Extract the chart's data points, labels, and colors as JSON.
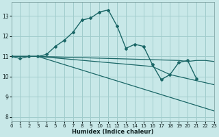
{
  "xlabel": "Humidex (Indice chaleur)",
  "background_color": "#c8e8e8",
  "grid_color": "#a0cccc",
  "line_color": "#1a6666",
  "xlim": [
    0,
    23
  ],
  "ylim": [
    7.8,
    13.7
  ],
  "yticks": [
    8,
    9,
    10,
    11,
    12,
    13
  ],
  "xticks": [
    0,
    1,
    2,
    3,
    4,
    5,
    6,
    7,
    8,
    9,
    10,
    11,
    12,
    13,
    14,
    15,
    16,
    17,
    18,
    19,
    20,
    21,
    22,
    23
  ],
  "line1_x": [
    0,
    1,
    2,
    3,
    4,
    5,
    6,
    7,
    8,
    9,
    10,
    11,
    12,
    13,
    14,
    15,
    16,
    17,
    18,
    19,
    20,
    21
  ],
  "line1_y": [
    11.0,
    10.9,
    11.0,
    11.0,
    11.1,
    11.5,
    11.8,
    12.2,
    12.8,
    12.9,
    13.2,
    13.3,
    12.5,
    11.4,
    11.6,
    11.5,
    10.6,
    9.85,
    10.1,
    10.7,
    10.8,
    9.9
  ],
  "line2_x": [
    0,
    3,
    23
  ],
  "line2_y": [
    11.0,
    11.0,
    8.3
  ],
  "line3_x": [
    0,
    3,
    16,
    17,
    18,
    19,
    20,
    21,
    22,
    23
  ],
  "line3_y": [
    11.0,
    11.0,
    10.5,
    10.3,
    10.1,
    10.0,
    9.9,
    9.8,
    9.7,
    9.6
  ],
  "line4_x": [
    0,
    3,
    19,
    20,
    21,
    22,
    23
  ],
  "line4_y": [
    11.0,
    11.0,
    10.8,
    10.75,
    10.8,
    10.8,
    10.75
  ]
}
